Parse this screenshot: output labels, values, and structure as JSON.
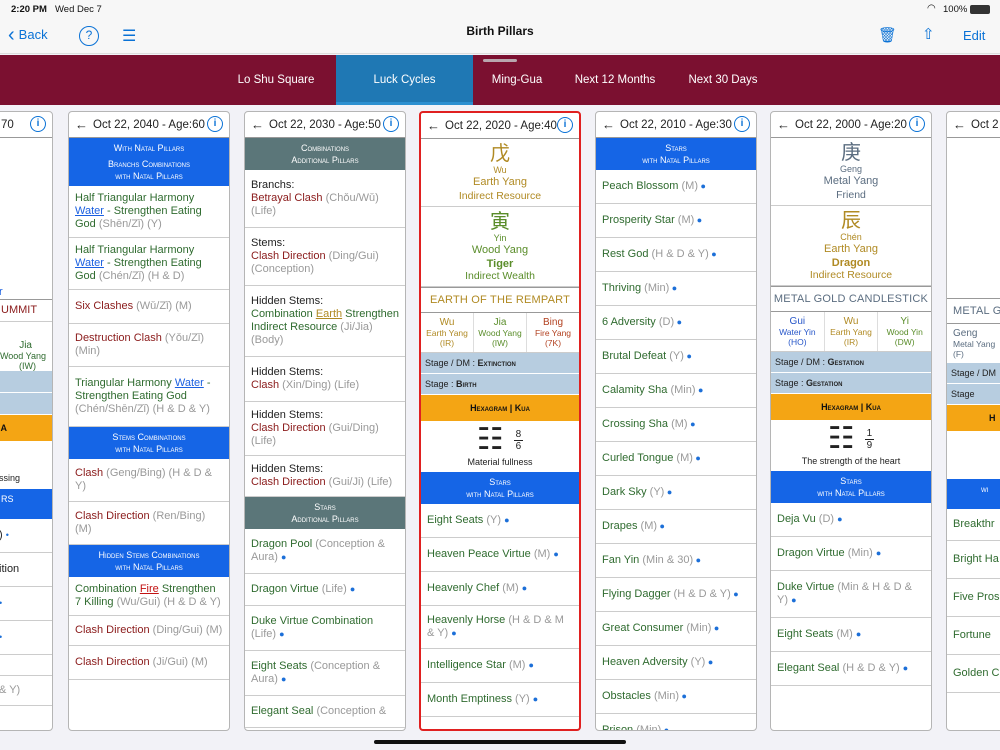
{
  "status": {
    "time": "2:20 PM",
    "date": "Wed Dec 7",
    "battery": "100%"
  },
  "nav": {
    "back": "Back",
    "title": "Birth Pillars",
    "edit": "Edit"
  },
  "tabs": [
    {
      "label": "Lo Shu Square"
    },
    {
      "label": "Luck Cycles"
    },
    {
      "label": "Ming-Gua"
    },
    {
      "label": "Next 12 Months"
    },
    {
      "label": "Next 30 Days"
    }
  ],
  "card0": {
    "header": "70",
    "texts": [
      "r",
      "UMMIT",
      "Jia",
      "Wood Yang",
      "(IW)",
      "A",
      "ssing",
      "RS",
      ")",
      "ition"
    ],
    "misc": [
      "•",
      "•",
      "•",
      "& Y)"
    ]
  },
  "card1": {
    "header": "Oct 22, 2040 - Age:60",
    "sec1": "With Natal Pillars",
    "sec2": "Branchs Combinations",
    "sec2b": "with Natal Pillars",
    "items1": [
      {
        "a": "Half Triangular Harmony ",
        "b": "Water",
        "c": " - Strengthen Eating God",
        "d": " (Shēn/Zǐ) (Y)"
      },
      {
        "a": "Half Triangular Harmony ",
        "b": "Water",
        "c": " - Strengthen Eating God",
        "d": " (Chén/Zǐ) (H & D)"
      }
    ],
    "items2": [
      {
        "a": "Six Clashes",
        "d": " (Wǔ/Zǐ) (M)"
      },
      {
        "a": "Destruction Clash",
        "d": " (Yǒu/Zǐ) (Min)"
      }
    ],
    "item3": {
      "a": "Triangular Harmony ",
      "b": "Water",
      "c": " - Strengthen Eating God",
      "d": " (Chén/Shēn/Zǐ) (H & D & Y)"
    },
    "sec3": "Stems Combinations",
    "sec3b": "with Natal Pillars",
    "items4": [
      {
        "a": "Clash",
        "d": " (Geng/Bing) (H & D & Y)"
      },
      {
        "a": "Clash Direction",
        "d": " (Ren/Bing) (M)"
      }
    ],
    "sec4": "Hidden Stems Combinations",
    "sec4b": "with Natal Pillars",
    "item5": {
      "a": "Combination ",
      "b": "Fire",
      "c": " Strengthen 7 Killing",
      "d": " (Wu/Gui) (H & D & Y)"
    },
    "items6": [
      {
        "a": "Clash Direction",
        "d": " (Ding/Gui) (M)"
      },
      {
        "a": "Clash Direction",
        "d": " (Ji/Gui) (M)"
      }
    ]
  },
  "card2": {
    "header": "Oct 22, 2030 - Age:50",
    "sec1": "Combinations",
    "sec1b": "Additional Pillars",
    "blocks": [
      {
        "t": "Branchs:",
        "a": "Betrayal Clash",
        "d": " (Chǒu/Wǔ) (Life)"
      },
      {
        "t": "Stems:",
        "a": "Clash Direction",
        "d": " (Ding/Gui) (Conception)"
      }
    ],
    "hs": {
      "t": "Hidden Stems:",
      "a": "Combination ",
      "b": "Earth",
      "c": " Strengthen Indirect Resource",
      "d": " (Ji/Jia) (Body)"
    },
    "blocks2": [
      {
        "t": "Hidden Stems:",
        "a": "Clash",
        "d": " (Xin/Ding) (Life)"
      },
      {
        "t": "Hidden Stems:",
        "a": "Clash Direction",
        "d": " (Gui/Ding) (Life)"
      },
      {
        "t": "Hidden Stems:",
        "a": "Clash Direction",
        "d": " (Gui/Ji) (Life)"
      }
    ],
    "sec2": "Stars",
    "sec2b": "Additional Pillars",
    "stars": [
      {
        "a": "Dragon Pool",
        "d": " (Conception & Aura)"
      },
      {
        "a": "Dragon Virtue",
        "d": " (Life)"
      },
      {
        "a": "Duke Virtue Combination",
        "d": " (Life)"
      },
      {
        "a": "Eight Seats",
        "d": " (Conception & Aura)"
      },
      {
        "a": "Elegant Seal",
        "d": " (Conception &"
      }
    ]
  },
  "card3": {
    "header": "Oct 22, 2020 - Age:40",
    "stem": {
      "ch": "戊",
      "py": "Wu",
      "el": "Earth Yang",
      "rel": "Indirect Resource"
    },
    "branch": {
      "ch": "寅",
      "py": "Yin",
      "el": "Wood Yang",
      "an": "Tiger",
      "rel": "Indirect Wealth"
    },
    "named": "Earth of the Rempart",
    "hidden": [
      {
        "c": "Wu",
        "s1": "Earth Yang",
        "s2": "(IR)"
      },
      {
        "c": "Jia",
        "s1": "Wood Yang",
        "s2": "(IW)"
      },
      {
        "c": "Bing",
        "s1": "Fire Yang",
        "s2": "(7K)"
      }
    ],
    "stage1": {
      "l": "Stage / DM : ",
      "v": "Extinction"
    },
    "stage2": {
      "l": "Stage        : ",
      "v": "Birth"
    },
    "hex": "Hexagram | Kua",
    "hexsym": "☷",
    "hexnum": {
      "top": "8",
      "bot": "6"
    },
    "hexname": "Material fullness",
    "sec": "Stars",
    "secb": "with Natal Pillars",
    "stars": [
      {
        "a": "Eight Seats",
        "d": " (Y)"
      },
      {
        "a": "Heaven Peace Virtue",
        "d": " (M)"
      },
      {
        "a": "Heavenly Chef",
        "d": " (M)"
      },
      {
        "a": "Heavenly Horse",
        "d": " (H & D & M & Y)"
      },
      {
        "a": "Intelligence Star",
        "d": " (M)"
      },
      {
        "a": "Month Emptiness",
        "d": " (Y)"
      }
    ]
  },
  "card4": {
    "header": "Oct 22, 2010 - Age:30",
    "sec": "Stars",
    "secb": "with Natal Pillars",
    "stars": [
      {
        "a": "Peach Blossom",
        "d": " (M)"
      },
      {
        "a": "Prosperity Star",
        "d": " (M)"
      },
      {
        "a": "Rest God",
        "d": " (H & D & Y)"
      },
      {
        "a": "Thriving",
        "d": " (Min)"
      },
      {
        "a": "6 Adversity",
        "d": " (D)"
      },
      {
        "a": "Brutal Defeat",
        "d": " (Y)"
      },
      {
        "a": "Calamity Sha",
        "d": " (Min)"
      },
      {
        "a": "Crossing Sha",
        "d": " (M)"
      },
      {
        "a": "Curled Tongue",
        "d": " (M)"
      },
      {
        "a": "Dark Sky",
        "d": " (Y)"
      },
      {
        "a": "Drapes",
        "d": " (M)"
      },
      {
        "a": "Fan Yin",
        "d": " (Min & 30)"
      },
      {
        "a": "Flying Dagger",
        "d": " (H & D & Y)"
      },
      {
        "a": "Great Consumer",
        "d": " (Min)"
      },
      {
        "a": "Heaven Adversity",
        "d": " (Y)"
      },
      {
        "a": "Obstacles",
        "d": " (Min)"
      },
      {
        "a": "Prison",
        "d": " (Min)"
      }
    ]
  },
  "card5": {
    "header": "Oct 22, 2000 - Age:20",
    "stem": {
      "ch": "庚",
      "py": "Geng",
      "el": "Metal Yang",
      "rel": "Friend"
    },
    "branch": {
      "ch": "辰",
      "py": "Chén",
      "el": "Earth Yang",
      "an": "Dragon",
      "rel": "Indirect Resource"
    },
    "named": "Metal Gold Candlestick",
    "hidden": [
      {
        "c": "Gui",
        "s1": "Water Yin",
        "s2": "(HO)"
      },
      {
        "c": "Wu",
        "s1": "Earth Yang",
        "s2": "(IR)"
      },
      {
        "c": "Yi",
        "s1": "Wood Yin",
        "s2": "(DW)"
      }
    ],
    "stage1": {
      "l": "Stage / DM : ",
      "v": "Gestation"
    },
    "stage2": {
      "l": "Stage        : ",
      "v": "Gestation"
    },
    "hex": "Hexagram | Kua",
    "hexsym": "☷",
    "hexnum": {
      "top": "1",
      "bot": "9"
    },
    "hexname": "The strength of the heart",
    "sec": "Stars",
    "secb": "with Natal Pillars",
    "stars": [
      {
        "a": "Deja Vu",
        "d": " (D)"
      },
      {
        "a": "Dragon Virtue",
        "d": " (Min)"
      },
      {
        "a": "Duke Virtue",
        "d": " (Min & H & D & Y)"
      },
      {
        "a": "Eight Seats",
        "d": " (M)"
      },
      {
        "a": "Elegant Seal",
        "d": " (H & D & Y)"
      }
    ]
  },
  "card6": {
    "header": "Oct 2",
    "texts": [
      "Geng",
      "Metal Yang",
      "(F)",
      "Stage / DM",
      "Stage",
      "H",
      "wi",
      "METAL G"
    ],
    "stars": [
      "Breakthr",
      "Bright Ha",
      "Five Pros",
      "Fortune",
      "Golden C"
    ]
  }
}
